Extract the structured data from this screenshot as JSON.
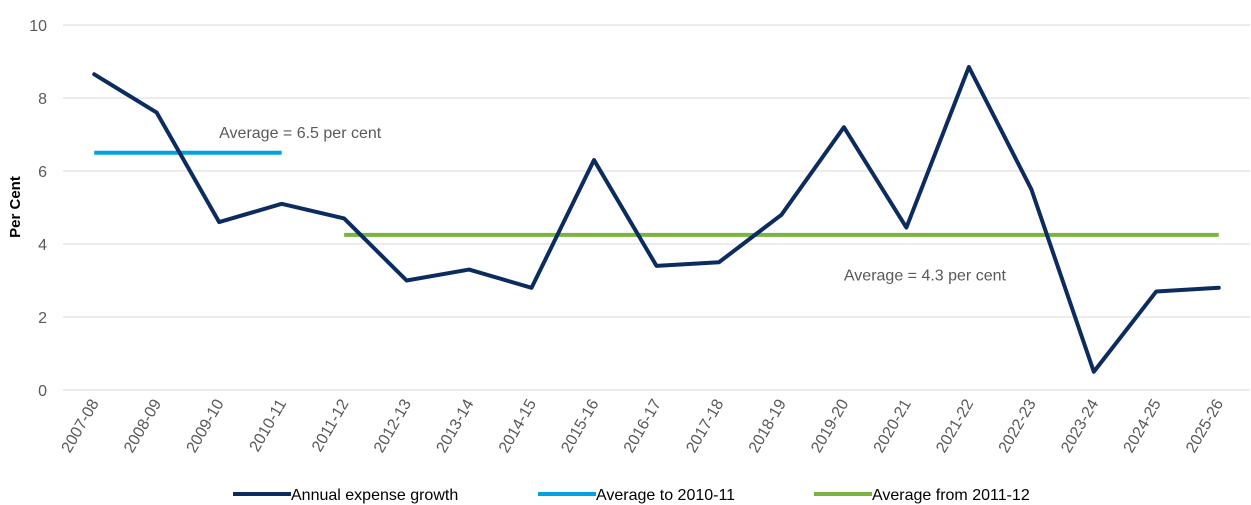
{
  "chart_data": {
    "type": "line",
    "title": "",
    "xlabel": "",
    "ylabel": "Per Cent",
    "ylim": [
      0,
      10
    ],
    "yticks": [
      "0",
      "2",
      "4",
      "6",
      "8",
      "10"
    ],
    "grid": "horizontal",
    "legend_position": "bottom",
    "categories": [
      "2007-08",
      "2008-09",
      "2009-10",
      "2010-11",
      "2011-12",
      "2012-13",
      "2013-14",
      "2014-15",
      "2015-16",
      "2016-17",
      "2017-18",
      "2018-19",
      "2019-20",
      "2020-21",
      "2021-22",
      "2022-23",
      "2023-24",
      "2024-25",
      "2025-26"
    ],
    "series": [
      {
        "name": "Annual expense growth",
        "color": "#0c2c5f",
        "values": [
          8.65,
          7.6,
          4.6,
          5.1,
          4.7,
          3.0,
          3.3,
          2.8,
          6.3,
          3.4,
          3.5,
          4.8,
          7.2,
          4.45,
          8.85,
          5.5,
          0.5,
          2.7,
          2.8
        ]
      },
      {
        "name": "Average to 2010-11",
        "color": "#00a3e0",
        "from": "2007-08",
        "to": "2010-11",
        "value": 6.5
      },
      {
        "name": "Average from 2011-12",
        "color": "#7ab342",
        "from": "2011-12",
        "to": "2025-26",
        "value": 4.25
      }
    ],
    "annotations": [
      {
        "text": "Average = 6.5 per cent",
        "anchor_category": "2009-10",
        "value": 6.9
      },
      {
        "text": "Average = 4.3 per cent",
        "anchor_category": "2019-20",
        "value": 3.0
      }
    ]
  }
}
